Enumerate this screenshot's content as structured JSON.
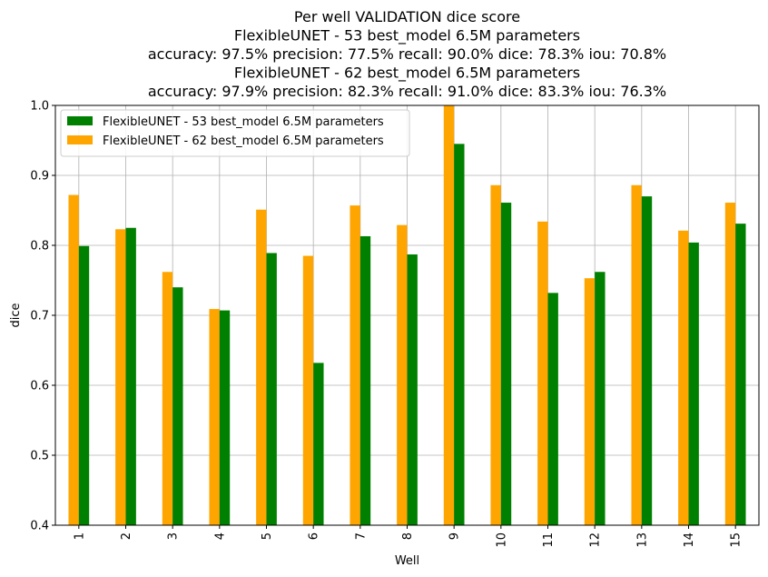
{
  "chart_data": {
    "type": "bar",
    "title_lines": [
      "Per well VALIDATION dice score",
      "FlexibleUNET - 53 best_model 6.5M parameters",
      "accuracy: 97.5% precision: 77.5% recall: 90.0% dice: 78.3% iou: 70.8%",
      "FlexibleUNET - 62 best_model 6.5M parameters",
      "accuracy: 97.9% precision: 82.3% recall: 91.0% dice: 83.3% iou: 76.3%"
    ],
    "xlabel": "Well",
    "ylabel": "dice",
    "ylim": [
      0.4,
      1.0
    ],
    "yticks": [
      "0.4",
      "0.5",
      "0.6",
      "0.7",
      "0.8",
      "0.9",
      "1.0"
    ],
    "grid": true,
    "legend_position": "top-left",
    "categories": [
      "1",
      "2",
      "3",
      "4",
      "5",
      "6",
      "7",
      "8",
      "9",
      "10",
      "11",
      "12",
      "13",
      "14",
      "15"
    ],
    "series": [
      {
        "name": "FlexibleUNET - 53 best_model 6.5M parameters",
        "color": "#008000",
        "values": [
          0.799,
          0.825,
          0.74,
          0.707,
          0.789,
          0.632,
          0.813,
          0.787,
          0.945,
          0.861,
          0.732,
          0.762,
          0.87,
          0.804,
          0.831
        ]
      },
      {
        "name": "FlexibleUNET - 62 best_model 6.5M parameters",
        "color": "#FFA500",
        "values": [
          0.872,
          0.823,
          0.762,
          0.709,
          0.851,
          0.785,
          0.857,
          0.829,
          1.0,
          0.886,
          0.834,
          0.753,
          0.886,
          0.821,
          0.861
        ]
      }
    ],
    "draw_order": [
      1,
      0
    ]
  }
}
